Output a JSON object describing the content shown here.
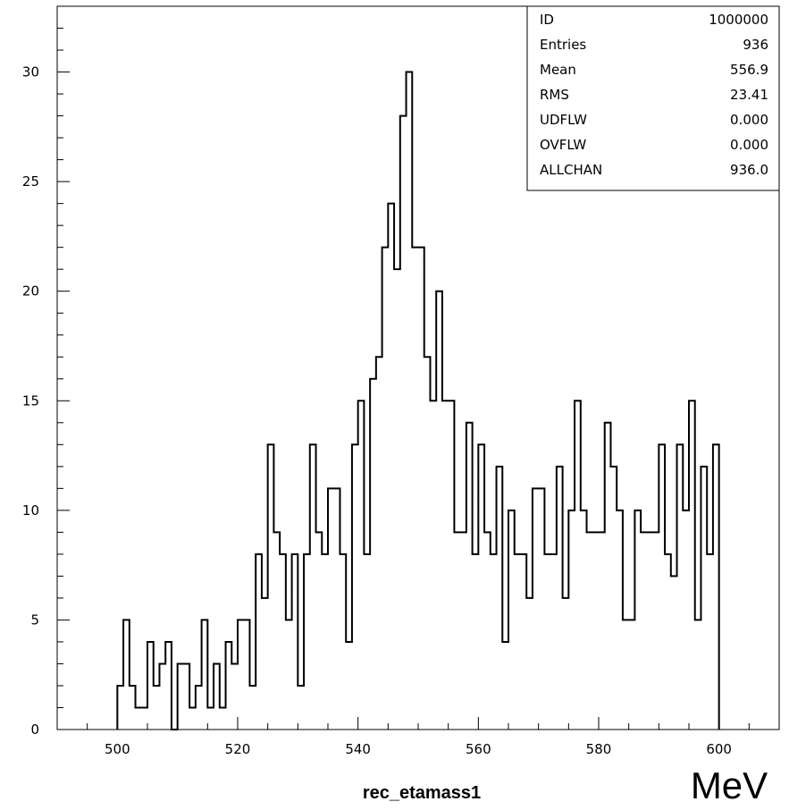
{
  "chart_data": {
    "type": "histogram",
    "title": "",
    "xlabel": "rec_etamass1",
    "unit_label": "MeV",
    "ylabel": "",
    "xlim": [
      490,
      610
    ],
    "ylim": [
      0,
      33
    ],
    "bin_start": 500,
    "bin_width": 1,
    "x_ticks": [
      500,
      520,
      540,
      560,
      580,
      600
    ],
    "y_ticks": [
      0,
      5,
      10,
      15,
      20,
      25,
      30
    ],
    "values": [
      2,
      5,
      2,
      1,
      1,
      4,
      2,
      3,
      4,
      0,
      3,
      3,
      1,
      2,
      5,
      1,
      3,
      1,
      4,
      3,
      5,
      5,
      2,
      8,
      6,
      13,
      9,
      8,
      5,
      8,
      2,
      8,
      13,
      9,
      8,
      11,
      11,
      8,
      4,
      13,
      15,
      8,
      16,
      17,
      22,
      24,
      21,
      28,
      30,
      22,
      22,
      17,
      15,
      20,
      15,
      15,
      9,
      9,
      14,
      8,
      13,
      9,
      8,
      12,
      4,
      10,
      8,
      8,
      6,
      11,
      11,
      8,
      8,
      12,
      6,
      10,
      15,
      10,
      9,
      9,
      9,
      14,
      12,
      10,
      5,
      5,
      10,
      9,
      9,
      9,
      13,
      8,
      7,
      13,
      10,
      15,
      5,
      12,
      8,
      13
    ],
    "stats": [
      {
        "label": "ID",
        "value": "1000000"
      },
      {
        "label": "Entries",
        "value": "936"
      },
      {
        "label": "Mean",
        "value": "556.9"
      },
      {
        "label": "RMS",
        "value": "23.41"
      },
      {
        "label": "UDFLW",
        "value": "0.000"
      },
      {
        "label": "OVFLW",
        "value": "0.000"
      },
      {
        "label": "ALLCHAN",
        "value": "936.0"
      }
    ]
  }
}
